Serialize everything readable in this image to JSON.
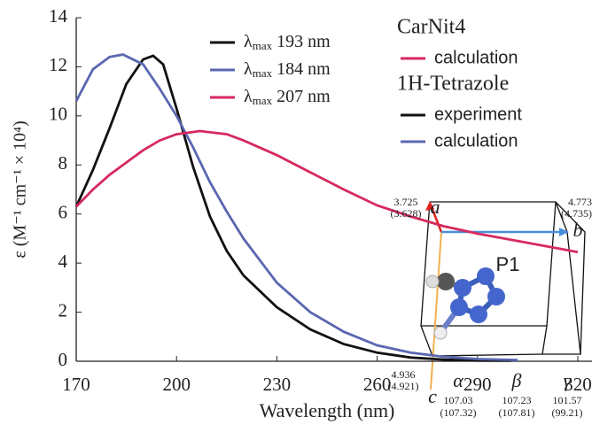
{
  "chart_data": {
    "type": "line",
    "x_label": "Wavelength (nm)",
    "y_label": "ε (M⁻¹ cm⁻¹ × 10⁴)",
    "xlim": [
      170,
      320
    ],
    "ylim": [
      0,
      14
    ],
    "xticks": [
      170,
      200,
      230,
      260,
      290,
      320
    ],
    "yticks": [
      0,
      2,
      4,
      6,
      8,
      10,
      12,
      14
    ],
    "series": [
      {
        "name": "λmax 193 nm",
        "color": "#111111",
        "x": [
          170,
          175,
          180,
          185,
          190,
          193,
          196,
          200,
          205,
          210,
          215,
          220,
          230,
          240,
          250,
          260,
          270,
          280,
          290,
          300
        ],
        "values": [
          6.3,
          7.8,
          9.5,
          11.3,
          12.3,
          12.45,
          12.1,
          10.3,
          7.9,
          5.9,
          4.5,
          3.5,
          2.2,
          1.3,
          0.7,
          0.35,
          0.15,
          0.07,
          0.03,
          0.02
        ]
      },
      {
        "name": "λmax 184 nm",
        "color": "#5b67b0",
        "x": [
          170,
          175,
          180,
          184,
          190,
          195,
          200,
          205,
          210,
          215,
          220,
          230,
          240,
          250,
          260,
          270,
          280,
          290,
          302
        ],
        "values": [
          10.6,
          11.9,
          12.4,
          12.5,
          12.1,
          11.1,
          10.0,
          8.7,
          7.3,
          6.1,
          5.0,
          3.2,
          2.0,
          1.2,
          0.65,
          0.35,
          0.18,
          0.09,
          0.05
        ]
      },
      {
        "name": "λmax 207 nm",
        "color": "#d62a5e",
        "x": [
          170,
          175,
          180,
          185,
          190,
          195,
          200,
          207,
          215,
          220,
          230,
          240,
          250,
          260,
          270,
          280,
          290,
          300,
          310,
          320
        ],
        "values": [
          6.3,
          7.0,
          7.6,
          8.1,
          8.6,
          9.0,
          9.25,
          9.38,
          9.25,
          9.0,
          8.4,
          7.7,
          7.0,
          6.35,
          5.9,
          5.5,
          5.2,
          4.95,
          4.7,
          4.45
        ]
      }
    ]
  },
  "side_legend": [
    {
      "title": "CarNit4",
      "entries": [
        {
          "label": "calculation",
          "color": "#d62a5e"
        }
      ]
    },
    {
      "title": "1H-Tetrazole",
      "entries": [
        {
          "label": "experiment",
          "color": "#111111"
        },
        {
          "label": "calculation",
          "color": "#5b67b0"
        }
      ]
    }
  ],
  "crystal": {
    "space_group": "P1",
    "axes": [
      {
        "symbol": "a",
        "value": "3.725",
        "calc": "(3.628)"
      },
      {
        "symbol": "b",
        "value": "4.773",
        "calc": "(4.735)"
      },
      {
        "symbol": "c",
        "value": "4.936",
        "calc": "(4.921)"
      }
    ],
    "angles": [
      {
        "symbol": "α",
        "value": "107.03",
        "calc": "(107.32)"
      },
      {
        "symbol": "β",
        "value": "107.23",
        "calc": "(107.81)"
      },
      {
        "symbol": "γ",
        "value": "101.57",
        "calc": "(99.21)"
      }
    ]
  }
}
